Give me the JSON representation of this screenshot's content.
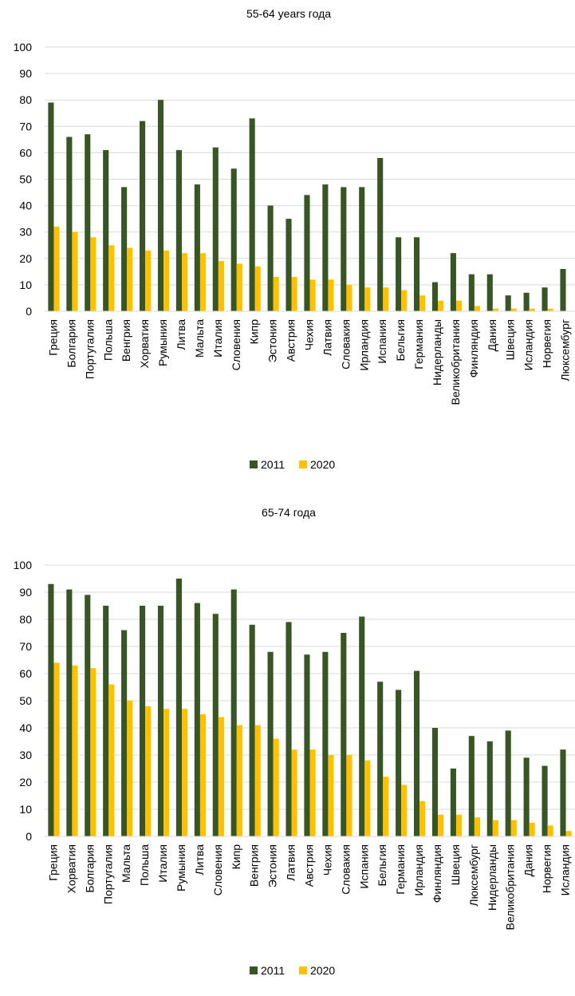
{
  "colors": {
    "s2011": "#375623",
    "s2020": "#FFC000",
    "grid": "#D9D9D9"
  },
  "chart_data": [
    {
      "type": "bar",
      "title": "55-64 years года",
      "ylim": [
        0,
        100
      ],
      "yticks": [
        0,
        10,
        20,
        30,
        40,
        50,
        60,
        70,
        80,
        90,
        100
      ],
      "grid": true,
      "legend": "bottom",
      "categories": [
        "Греция",
        "Болгария",
        "Португалия",
        "Польша",
        "Венгрия",
        "Хорватия",
        "Румыния",
        "Литва",
        "Мальта",
        "Италия",
        "Словения",
        "Кипр",
        "Эстония",
        "Австрия",
        "Чехия",
        "Латвия",
        "Словакия",
        "Ирландия",
        "Испания",
        "Бельгия",
        "Германия",
        "Нидерланды",
        "Великобритания",
        "Финляндия",
        "Дания",
        "Швеция",
        "Исландия",
        "Норвегия",
        "Люксембург"
      ],
      "series": [
        {
          "name": "2011",
          "values": [
            79,
            66,
            67,
            61,
            47,
            72,
            80,
            61,
            48,
            62,
            54,
            73,
            40,
            35,
            44,
            48,
            47,
            47,
            58,
            28,
            28,
            11,
            22,
            14,
            14,
            6,
            7,
            9,
            16
          ]
        },
        {
          "name": "2020",
          "values": [
            32,
            30,
            28,
            25,
            24,
            23,
            23,
            22,
            22,
            19,
            18,
            17,
            13,
            13,
            12,
            12,
            10,
            9,
            9,
            8,
            6,
            4,
            4,
            2,
            1,
            1,
            1,
            1,
            0
          ]
        }
      ]
    },
    {
      "type": "bar",
      "title": "65-74 года",
      "ylim": [
        0,
        100
      ],
      "yticks": [
        0,
        10,
        20,
        30,
        40,
        50,
        60,
        70,
        80,
        90,
        100
      ],
      "grid": true,
      "legend": "bottom",
      "categories": [
        "Греция",
        "Хорватия",
        "Болгария",
        "Португалия",
        "Мальта",
        "Польша",
        "Италия",
        "Румыния",
        "Литва",
        "Словения",
        "Кипр",
        "Венгрия",
        "Эстония",
        "Латвия",
        "Австрия",
        "Чехия",
        "Словакия",
        "Испания",
        "Бельгия",
        "Германия",
        "Ирландия",
        "Финляндия",
        "Швеция",
        "Люксембург",
        "Нидерланды",
        "Великобритания",
        "Дания",
        "Норвегия",
        "Исландия"
      ],
      "series": [
        {
          "name": "2011",
          "values": [
            93,
            91,
            89,
            85,
            76,
            85,
            85,
            95,
            86,
            82,
            91,
            78,
            68,
            79,
            67,
            68,
            75,
            81,
            57,
            54,
            61,
            40,
            25,
            37,
            35,
            39,
            29,
            26,
            32
          ]
        },
        {
          "name": "2020",
          "values": [
            64,
            63,
            62,
            56,
            50,
            48,
            47,
            47,
            45,
            44,
            41,
            41,
            36,
            32,
            32,
            30,
            30,
            28,
            22,
            19,
            13,
            8,
            8,
            7,
            6,
            6,
            5,
            4,
            2
          ]
        }
      ]
    }
  ]
}
